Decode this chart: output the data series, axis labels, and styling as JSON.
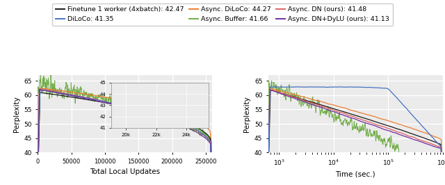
{
  "colors": {
    "finetune": "#1a1a1a",
    "diloco": "#4472c4",
    "async_diloco": "#ed7d31",
    "async_buffer": "#70ad47",
    "async_dn": "#e06060",
    "async_dndy": "#7030a0"
  },
  "left_xlabel": "Total Local Updates",
  "left_ylabel": "Perplexity",
  "right_xlabel": "Time (sec.)",
  "right_ylabel": "Perplexity",
  "ylim": [
    40,
    67
  ],
  "bg_color": "#ebebeb",
  "legend_labels": [
    "Finetune 1 worker (4xbatch): 42.47",
    "DiLoCo: 41.35",
    "Async. DiLoCo: 44.27",
    "Async. Buffer: 41.66",
    "Async. DN (ours): 41.48",
    "Async. DN+DyLU (ours): 41.13"
  ]
}
